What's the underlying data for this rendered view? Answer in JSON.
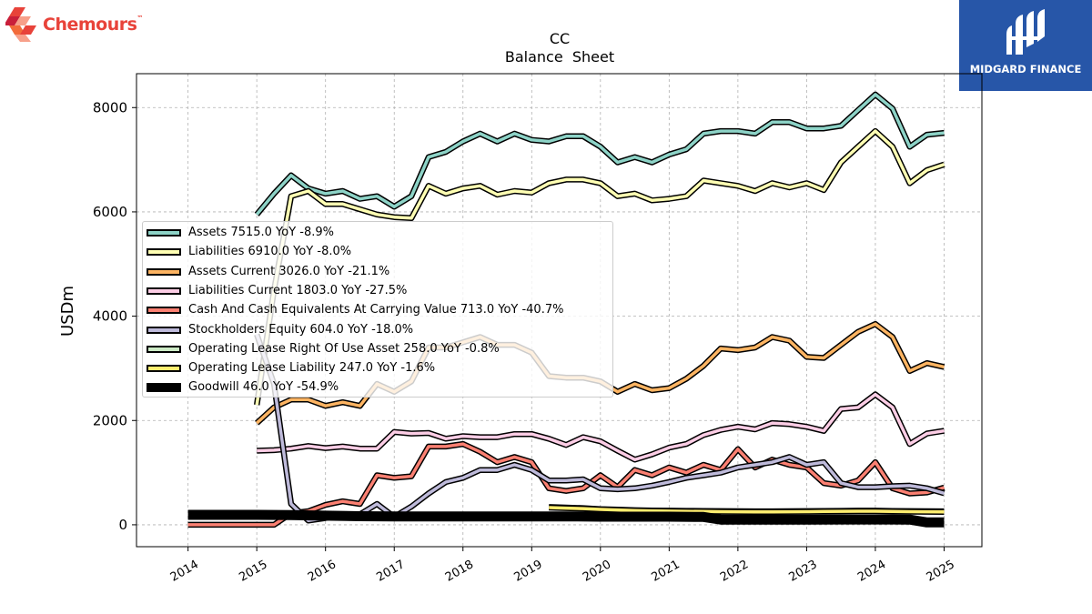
{
  "brand": {
    "name": "Chemours",
    "tm": "™",
    "colors": [
      "#e8433a",
      "#f26b3a",
      "#f7a08a",
      "#c91f3a"
    ]
  },
  "badge": {
    "name": "MIDGARD FINANCE",
    "background": "#2756a8"
  },
  "chart_data": {
    "type": "line",
    "title": "CC",
    "subtitle": "Balance  Sheet",
    "ylabel": "USDm",
    "xlabel": "",
    "ylim": [
      -420,
      8650
    ],
    "xlim": [
      2013.25,
      2025.55
    ],
    "yticks": [
      0,
      2000,
      4000,
      6000,
      8000
    ],
    "xticks": [
      "2014",
      "2015",
      "2016",
      "2017",
      "2018",
      "2019",
      "2020",
      "2021",
      "2022",
      "2023",
      "2024",
      "2025"
    ],
    "grid": true,
    "legend_position": "center-left",
    "series": [
      {
        "name": "Assets",
        "color": "#8dd3c7",
        "legend": "Assets  7515.0 YoY -8.9%",
        "x": [
          2015.0,
          2015.25,
          2015.5,
          2015.75,
          2016.0,
          2016.25,
          2016.5,
          2016.75,
          2017.0,
          2017.25,
          2017.5,
          2017.75,
          2018.0,
          2018.25,
          2018.5,
          2018.75,
          2019.0,
          2019.25,
          2019.5,
          2019.75,
          2020.0,
          2020.25,
          2020.5,
          2020.75,
          2021.0,
          2021.25,
          2021.5,
          2021.75,
          2022.0,
          2022.25,
          2022.5,
          2022.75,
          2023.0,
          2023.25,
          2023.5,
          2023.75,
          2024.0,
          2024.25,
          2024.5,
          2024.75,
          2025.0
        ],
        "y": [
          5950,
          6350,
          6700,
          6450,
          6350,
          6400,
          6250,
          6300,
          6100,
          6300,
          7050,
          7150,
          7350,
          7500,
          7350,
          7500,
          7380,
          7350,
          7450,
          7450,
          7250,
          6950,
          7050,
          6950,
          7100,
          7200,
          7500,
          7550,
          7550,
          7500,
          7720,
          7720,
          7600,
          7600,
          7650,
          7950,
          8250,
          7980,
          7250,
          7480,
          7515
        ]
      },
      {
        "name": "Liabilities",
        "color": "#ffffb3",
        "legend": "Liabilities  6910.0 YoY -8.0%",
        "x": [
          2015.0,
          2015.25,
          2015.5,
          2015.75,
          2016.0,
          2016.25,
          2016.5,
          2016.75,
          2017.0,
          2017.25,
          2017.5,
          2017.75,
          2018.0,
          2018.25,
          2018.5,
          2018.75,
          2019.0,
          2019.25,
          2019.5,
          2019.75,
          2020.0,
          2020.25,
          2020.5,
          2020.75,
          2021.0,
          2021.25,
          2021.5,
          2021.75,
          2022.0,
          2022.25,
          2022.5,
          2022.75,
          2023.0,
          2023.25,
          2023.5,
          2023.75,
          2024.0,
          2024.25,
          2024.5,
          2024.75,
          2025.0
        ],
        "y": [
          2300,
          4500,
          6300,
          6400,
          6150,
          6150,
          6050,
          5950,
          5900,
          5880,
          6500,
          6350,
          6450,
          6500,
          6330,
          6400,
          6370,
          6550,
          6620,
          6620,
          6550,
          6300,
          6350,
          6220,
          6250,
          6300,
          6600,
          6550,
          6500,
          6400,
          6550,
          6470,
          6550,
          6420,
          6950,
          7250,
          7550,
          7250,
          6550,
          6800,
          6910
        ]
      },
      {
        "name": "Assets Current",
        "color": "#fdb462",
        "legend": "Assets Current  3026.0 YoY -21.1%",
        "x": [
          2015.0,
          2015.25,
          2015.5,
          2015.75,
          2016.0,
          2016.25,
          2016.5,
          2016.75,
          2017.0,
          2017.25,
          2017.5,
          2017.75,
          2018.0,
          2018.25,
          2018.5,
          2018.75,
          2019.0,
          2019.25,
          2019.5,
          2019.75,
          2020.0,
          2020.25,
          2020.5,
          2020.75,
          2021.0,
          2021.25,
          2021.5,
          2021.75,
          2022.0,
          2022.25,
          2022.5,
          2022.75,
          2023.0,
          2023.25,
          2023.5,
          2023.75,
          2024.0,
          2024.25,
          2024.5,
          2024.75,
          2025.0
        ],
        "y": [
          1950,
          2250,
          2400,
          2400,
          2280,
          2350,
          2280,
          2700,
          2550,
          2750,
          3400,
          3400,
          3500,
          3600,
          3450,
          3450,
          3300,
          2850,
          2820,
          2820,
          2750,
          2550,
          2700,
          2580,
          2620,
          2800,
          3050,
          3380,
          3350,
          3400,
          3600,
          3530,
          3220,
          3200,
          3450,
          3700,
          3850,
          3600,
          2950,
          3100,
          3026
        ]
      },
      {
        "name": "Liabilities Current",
        "color": "#fccde5",
        "legend": "Liabilities Current  1803.0 YoY -27.5%",
        "x": [
          2015.0,
          2015.25,
          2015.5,
          2015.75,
          2016.0,
          2016.25,
          2016.5,
          2016.75,
          2017.0,
          2017.25,
          2017.5,
          2017.75,
          2018.0,
          2018.25,
          2018.5,
          2018.75,
          2019.0,
          2019.25,
          2019.5,
          2019.75,
          2020.0,
          2020.25,
          2020.5,
          2020.75,
          2021.0,
          2021.25,
          2021.5,
          2021.75,
          2022.0,
          2022.25,
          2022.5,
          2022.75,
          2023.0,
          2023.25,
          2023.5,
          2023.75,
          2024.0,
          2024.25,
          2024.5,
          2024.75,
          2025.0
        ],
        "y": [
          1420,
          1430,
          1460,
          1510,
          1470,
          1500,
          1460,
          1460,
          1780,
          1750,
          1760,
          1650,
          1700,
          1680,
          1680,
          1740,
          1740,
          1650,
          1530,
          1680,
          1600,
          1420,
          1250,
          1350,
          1480,
          1550,
          1720,
          1820,
          1880,
          1830,
          1950,
          1930,
          1880,
          1800,
          2220,
          2250,
          2500,
          2250,
          1550,
          1750,
          1803
        ]
      },
      {
        "name": "Cash And Cash Equivalents At Carrying Value",
        "color": "#fb8072",
        "legend": "Cash And Cash Equivalents At Carrying Value  713.0 YoY -40.7%",
        "x": [
          2014.0,
          2014.25,
          2014.5,
          2014.75,
          2015.0,
          2015.25,
          2015.5,
          2015.75,
          2016.0,
          2016.25,
          2016.5,
          2016.75,
          2017.0,
          2017.25,
          2017.5,
          2017.75,
          2018.0,
          2018.25,
          2018.5,
          2018.75,
          2019.0,
          2019.25,
          2019.5,
          2019.75,
          2020.0,
          2020.25,
          2020.5,
          2020.75,
          2021.0,
          2021.25,
          2021.5,
          2021.75,
          2022.0,
          2022.25,
          2022.5,
          2022.75,
          2023.0,
          2023.25,
          2023.5,
          2023.75,
          2024.0,
          2024.25,
          2024.5,
          2024.75,
          2025.0
        ],
        "y": [
          0,
          0,
          0,
          0,
          0,
          0,
          220,
          260,
          380,
          450,
          400,
          950,
          900,
          930,
          1500,
          1500,
          1550,
          1400,
          1200,
          1300,
          1200,
          700,
          650,
          700,
          950,
          720,
          1050,
          950,
          1100,
          1000,
          1150,
          1050,
          1450,
          1100,
          1250,
          1150,
          1100,
          800,
          750,
          850,
          1200,
          700,
          600,
          620,
          713
        ]
      },
      {
        "name": "Stockholders Equity",
        "color": "#bebada",
        "legend": "Stockholders Equity  604.0 YoY -18.0%",
        "x": [
          2015.0,
          2015.25,
          2015.5,
          2015.75,
          2016.0,
          2016.25,
          2016.5,
          2016.75,
          2017.0,
          2017.25,
          2017.5,
          2017.75,
          2018.0,
          2018.25,
          2018.5,
          2018.75,
          2019.0,
          2019.25,
          2019.5,
          2019.75,
          2020.0,
          2020.25,
          2020.5,
          2020.75,
          2021.0,
          2021.25,
          2021.5,
          2021.75,
          2022.0,
          2022.25,
          2022.5,
          2022.75,
          2023.0,
          2023.25,
          2023.5,
          2023.75,
          2024.0,
          2024.25,
          2024.5,
          2024.75,
          2025.0
        ],
        "y": [
          3650,
          2700,
          400,
          80,
          130,
          200,
          200,
          400,
          150,
          350,
          600,
          820,
          900,
          1050,
          1050,
          1150,
          1050,
          850,
          850,
          870,
          700,
          680,
          700,
          750,
          820,
          900,
          950,
          1000,
          1100,
          1150,
          1200,
          1300,
          1150,
          1200,
          800,
          720,
          720,
          740,
          750,
          700,
          604
        ]
      },
      {
        "name": "Operating Lease Right Of Use Asset",
        "color": "#ccebc5",
        "legend": "Operating Lease Right Of Use Asset  258.0 YoY -0.8%",
        "x": [
          2019.25,
          2019.5,
          2019.75,
          2020.0,
          2020.25,
          2020.5,
          2020.75,
          2021.0,
          2021.25,
          2021.5,
          2021.75,
          2022.0,
          2022.25,
          2022.5,
          2022.75,
          2023.0,
          2023.25,
          2023.5,
          2023.75,
          2024.0,
          2024.25,
          2024.5,
          2024.75,
          2025.0
        ],
        "y": [
          340,
          330,
          320,
          300,
          290,
          280,
          275,
          270,
          268,
          265,
          262,
          260,
          258,
          258,
          260,
          262,
          265,
          268,
          270,
          270,
          265,
          262,
          260,
          258
        ]
      },
      {
        "name": "Operating Lease Liability",
        "color": "#ffed6f",
        "legend": "Operating Lease Liability  247.0 YoY -1.6%",
        "x": [
          2019.25,
          2019.5,
          2019.75,
          2020.0,
          2020.25,
          2020.5,
          2020.75,
          2021.0,
          2021.25,
          2021.5,
          2021.75,
          2022.0,
          2022.25,
          2022.5,
          2022.75,
          2023.0,
          2023.25,
          2023.5,
          2023.75,
          2024.0,
          2024.25,
          2024.5,
          2024.75,
          2025.0
        ],
        "y": [
          330,
          320,
          310,
          295,
          285,
          275,
          268,
          262,
          258,
          255,
          252,
          250,
          248,
          248,
          250,
          252,
          255,
          258,
          260,
          260,
          255,
          252,
          250,
          247
        ]
      },
      {
        "name": "Goodwill",
        "color": "#000000",
        "legend": "Goodwill  46.0 YoY -54.9%",
        "thick": true,
        "x": [
          2014.0,
          2014.5,
          2015.0,
          2015.5,
          2016.0,
          2016.5,
          2017.0,
          2017.5,
          2018.0,
          2018.5,
          2019.0,
          2019.5,
          2020.0,
          2020.5,
          2021.0,
          2021.5,
          2021.75,
          2022.0,
          2022.5,
          2023.0,
          2023.5,
          2024.0,
          2024.25,
          2024.5,
          2024.75,
          2025.0
        ],
        "y": [
          190,
          190,
          190,
          185,
          175,
          165,
          160,
          160,
          160,
          160,
          160,
          160,
          155,
          155,
          155,
          150,
          100,
          100,
          100,
          100,
          102,
          102,
          102,
          100,
          46,
          46
        ]
      }
    ]
  }
}
